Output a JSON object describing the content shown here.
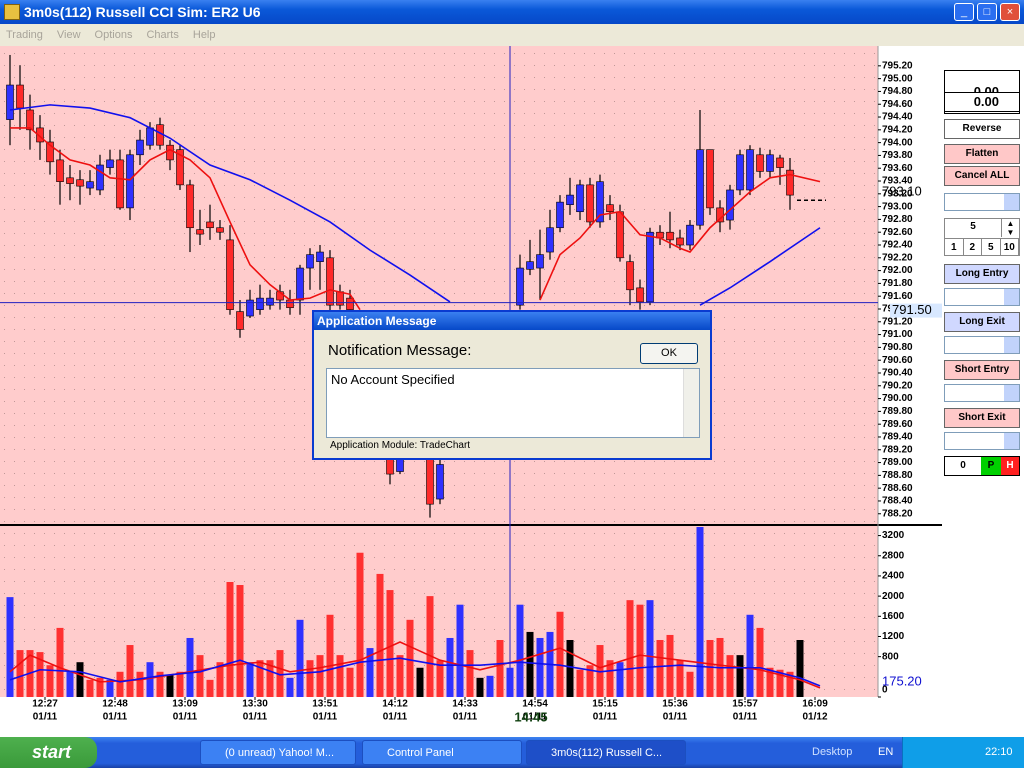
{
  "window": {
    "title": "3m0s(112) Russell CCI Sim: ER2 U6",
    "menu": [
      "Trading",
      "View",
      "Options",
      "Charts",
      "Help"
    ]
  },
  "chart_data": [
    {
      "type": "candlestick",
      "up_color": "#3030ff",
      "down_color": "#ff2a2a",
      "grid": true,
      "ylim": [
        788.04,
        795.51
      ],
      "yticks": [
        {
          "value": 795.2,
          "label": "795.20"
        },
        {
          "value": 795.0,
          "label": "795.00"
        },
        {
          "value": 794.8,
          "label": "794.80"
        },
        {
          "value": 794.6,
          "label": "794.60"
        },
        {
          "value": 794.4,
          "label": "794.40"
        },
        {
          "value": 794.2,
          "label": "794.20"
        },
        {
          "value": 794.0,
          "label": "794.00"
        },
        {
          "value": 793.8,
          "label": "793.80"
        },
        {
          "value": 793.6,
          "label": "793.60"
        },
        {
          "value": 793.4,
          "label": "793.40"
        },
        {
          "value": 793.2,
          "label": "793.20"
        },
        {
          "value": 793.0,
          "label": "793.00"
        },
        {
          "value": 792.8,
          "label": "792.80"
        },
        {
          "value": 792.6,
          "label": "792.60"
        },
        {
          "value": 792.4,
          "label": "792.40"
        },
        {
          "value": 792.2,
          "label": "792.20"
        },
        {
          "value": 792.0,
          "label": "792.00"
        },
        {
          "value": 791.8,
          "label": "791.80"
        },
        {
          "value": 791.6,
          "label": "791.60"
        },
        {
          "value": 791.4,
          "label": "791.40"
        },
        {
          "value": 791.2,
          "label": "791.20"
        },
        {
          "value": 791.0,
          "label": "791.00"
        },
        {
          "value": 790.8,
          "label": "790.80"
        },
        {
          "value": 790.6,
          "label": "790.60"
        },
        {
          "value": 790.4,
          "label": "790.40"
        },
        {
          "value": 790.2,
          "label": "790.20"
        },
        {
          "value": 790.0,
          "label": "790.00"
        },
        {
          "value": 789.8,
          "label": "789.80"
        },
        {
          "value": 789.6,
          "label": "789.60"
        },
        {
          "value": 789.4,
          "label": "789.40"
        },
        {
          "value": 789.2,
          "label": "789.20"
        },
        {
          "value": 789.0,
          "label": "789.00"
        },
        {
          "value": 788.8,
          "label": "788.80"
        },
        {
          "value": 788.6,
          "label": "788.60"
        },
        {
          "value": 788.4,
          "label": "788.40"
        },
        {
          "value": 788.2,
          "label": "788.20"
        }
      ],
      "open": [
        794.36,
        794.9,
        794.51,
        794.23,
        794.01,
        793.73,
        793.45,
        793.42,
        793.29,
        793.26,
        793.61,
        793.73,
        792.98,
        793.81,
        793.96,
        794.28,
        793.96,
        793.89,
        793.34,
        792.64,
        792.76,
        792.67,
        792.48,
        791.36,
        791.29,
        791.39,
        791.46,
        791.67,
        791.54,
        791.54,
        792.04,
        792.14,
        792.2,
        791.67,
        791.57,
        null,
        null,
        null,
        789.05,
        788.86,
        null,
        null,
        789.08,
        788.43,
        null,
        null,
        null,
        null,
        null,
        null,
        null,
        791.46,
        792.02,
        792.04,
        792.29,
        792.67,
        793.03,
        792.92,
        793.34,
        792.76,
        793.03,
        792.92,
        792.14,
        791.73,
        791.51,
        792.6,
        792.6,
        792.51,
        792.4,
        792.71,
        793.89,
        792.98,
        792.79,
        793.26,
        793.26,
        793.81,
        793.55,
        793.76,
        793.57,
        null
      ],
      "high": [
        795.37,
        795.21,
        794.75,
        794.43,
        794.2,
        793.89,
        793.65,
        793.57,
        793.57,
        793.81,
        793.89,
        793.89,
        793.89,
        794.2,
        794.32,
        794.39,
        794.04,
        793.96,
        793.42,
        792.95,
        793.03,
        792.79,
        792.71,
        791.54,
        791.7,
        791.78,
        791.7,
        791.78,
        791.7,
        792.09,
        792.35,
        792.4,
        792.32,
        791.78,
        791.7,
        null,
        null,
        null,
        789.13,
        789.13,
        null,
        null,
        789.13,
        789.05,
        null,
        null,
        null,
        null,
        null,
        null,
        null,
        792.25,
        792.48,
        792.64,
        792.95,
        793.18,
        793.45,
        793.42,
        793.45,
        793.5,
        793.18,
        793.03,
        792.25,
        791.86,
        792.67,
        792.71,
        792.92,
        792.64,
        792.79,
        794.51,
        793.89,
        793.1,
        793.34,
        793.89,
        793.96,
        793.92,
        793.89,
        793.81,
        793.76,
        null
      ],
      "low": [
        793.96,
        794.2,
        793.89,
        793.73,
        793.5,
        793.03,
        793.1,
        793.03,
        793.18,
        793.18,
        793.5,
        792.95,
        792.79,
        793.65,
        793.89,
        793.89,
        793.57,
        793.26,
        792.29,
        792.4,
        792.48,
        792.48,
        791.31,
        790.95,
        791.26,
        791.31,
        791.39,
        791.39,
        791.31,
        791.31,
        791.7,
        791.7,
        791.26,
        791.39,
        791.23,
        null,
        null,
        null,
        788.66,
        788.82,
        null,
        null,
        788.14,
        788.35,
        null,
        null,
        null,
        null,
        null,
        null,
        null,
        791.39,
        791.93,
        791.54,
        792.17,
        792.6,
        792.87,
        792.79,
        792.67,
        792.67,
        792.79,
        792.14,
        791.46,
        791.39,
        791.46,
        792.4,
        792.35,
        792.32,
        792.32,
        792.64,
        792.87,
        792.6,
        792.64,
        793.18,
        793.18,
        793.45,
        793.45,
        793.34,
        792.95,
        null
      ],
      "close": [
        794.9,
        794.54,
        794.2,
        794.01,
        793.7,
        793.39,
        793.36,
        793.32,
        793.39,
        793.65,
        793.73,
        792.98,
        793.81,
        794.04,
        794.23,
        793.96,
        793.73,
        793.34,
        792.67,
        792.57,
        792.67,
        792.6,
        791.39,
        791.08,
        791.54,
        791.57,
        791.57,
        791.54,
        791.42,
        792.04,
        792.25,
        792.29,
        791.46,
        791.46,
        791.39,
        null,
        null,
        null,
        788.82,
        789.08,
        null,
        null,
        788.35,
        788.97,
        null,
        null,
        null,
        null,
        null,
        null,
        null,
        792.04,
        792.14,
        792.25,
        792.67,
        793.07,
        793.18,
        793.34,
        792.76,
        793.39,
        792.92,
        792.2,
        791.7,
        791.51,
        792.6,
        792.51,
        792.48,
        792.4,
        792.71,
        793.89,
        792.98,
        792.76,
        793.26,
        793.81,
        793.89,
        793.55,
        793.81,
        793.61,
        793.18,
        null
      ],
      "lines": [
        {
          "color": "#1010ee",
          "x": [
            0,
            4,
            8,
            12,
            16,
            20,
            24,
            28,
            32,
            36,
            40,
            44,
            45,
            69,
            72,
            76,
            81
          ],
          "values": [
            794.51,
            794.59,
            794.54,
            794.39,
            794.07,
            793.65,
            793.42,
            793.1,
            792.76,
            792.32,
            791.93,
            791.51,
            null,
            791.46,
            791.73,
            792.14,
            792.67
          ]
        },
        {
          "color": "#ee1010",
          "x": [
            0,
            2,
            4,
            6,
            8,
            10,
            12,
            14,
            16,
            18,
            20,
            22,
            24,
            26,
            28,
            30,
            32,
            34,
            35,
            36,
            53,
            55,
            57,
            59,
            61,
            63,
            65,
            67,
            68,
            70,
            72,
            74,
            76,
            78,
            81
          ],
          "values": [
            794.23,
            794.23,
            793.96,
            793.73,
            793.65,
            793.45,
            793.42,
            793.73,
            793.89,
            793.73,
            793.45,
            792.76,
            792.09,
            791.78,
            791.54,
            791.57,
            791.7,
            791.63,
            791.39,
            null,
            791.54,
            792.25,
            792.51,
            792.87,
            792.92,
            792.56,
            792.51,
            792.35,
            792.29,
            792.67,
            792.95,
            793.23,
            793.45,
            793.5,
            793.39
          ]
        }
      ],
      "last_price": {
        "value": 793.1,
        "label": "793.10"
      },
      "crosshair_price": {
        "value": 791.5,
        "label": "791.50"
      },
      "crosshair_time": "14:45",
      "xtick_labels": [
        [
          "12:27",
          "01/11"
        ],
        [
          "12:48",
          "01/11"
        ],
        [
          "13:09",
          "01/11"
        ],
        [
          "13:30",
          "01/11"
        ],
        [
          "13:51",
          "01/11"
        ],
        [
          "14:12",
          "01/11"
        ],
        [
          "14:33",
          "01/11"
        ],
        [
          "14:54",
          "01/11"
        ],
        [
          "15:15",
          "01/11"
        ],
        [
          "15:36",
          "01/11"
        ],
        [
          "15:57",
          "01/11"
        ],
        [
          "16:09",
          "01/12"
        ]
      ]
    },
    {
      "type": "bar",
      "ylim": [
        0,
        3390
      ],
      "yticks": [
        3200,
        2800,
        2400,
        2000,
        1600,
        1200,
        800,
        0
      ],
      "reading": "175.20",
      "values": [
        1980,
        930,
        930,
        890,
        630,
        1370,
        500,
        690,
        340,
        380,
        340,
        500,
        1030,
        500,
        690,
        500,
        440,
        500,
        1170,
        830,
        340,
        690,
        2280,
        2220,
        690,
        730,
        730,
        930,
        380,
        1530,
        730,
        830,
        1630,
        830,
        580,
        2860,
        970,
        2440,
        2120,
        830,
        1530,
        580,
        2000,
        730,
        1170,
        1830,
        930,
        380,
        420,
        1130,
        580,
        1830,
        1290,
        1170,
        1290,
        1690,
        1130,
        540,
        630,
        1030,
        730,
        690,
        1920,
        1830,
        1920,
        1130,
        1230,
        730,
        500,
        3370,
        1130,
        1170,
        830,
        830,
        1630,
        1370,
        580,
        540,
        500,
        1130
      ],
      "colors": [
        "#3030ff",
        "#ff3030",
        "#ff3030",
        "#ff3030",
        "#ff3030",
        "#ff3030",
        "#3030ff",
        "#000000",
        "#ff3030",
        "#ff3030",
        "#3030ff",
        "#ff3030",
        "#ff3030",
        "#ff3030",
        "#3030ff",
        "#ff3030",
        "#000000",
        "#ff3030",
        "#3030ff",
        "#ff3030",
        "#ff3030",
        "#ff3030",
        "#ff3030",
        "#ff3030",
        "#3030ff",
        "#ff3030",
        "#ff3030",
        "#ff3030",
        "#3030ff",
        "#3030ff",
        "#ff3030",
        "#ff3030",
        "#ff3030",
        "#ff3030",
        "#ff3030",
        "#ff3030",
        "#3030ff",
        "#ff3030",
        "#ff3030",
        "#ff3030",
        "#ff3030",
        "#000000",
        "#ff3030",
        "#ff3030",
        "#3030ff",
        "#3030ff",
        "#ff3030",
        "#000000",
        "#3030ff",
        "#ff3030",
        "#3030ff",
        "#3030ff",
        "#000000",
        "#3030ff",
        "#3030ff",
        "#ff3030",
        "#000000",
        "#ff3030",
        "#ff3030",
        "#ff3030",
        "#ff3030",
        "#3030ff",
        "#ff3030",
        "#ff3030",
        "#3030ff",
        "#ff3030",
        "#ff3030",
        "#ff3030",
        "#ff3030",
        "#3030ff",
        "#ff3030",
        "#ff3030",
        "#ff3030",
        "#000000",
        "#3030ff",
        "#ff3030",
        "#ff3030",
        "#ff3030",
        "#ff3030",
        "#000000"
      ],
      "lines": [
        {
          "color": "#ee1010",
          "x": [
            0,
            2,
            5,
            9,
            13,
            18,
            22,
            25,
            28,
            31,
            35,
            39,
            43,
            47,
            51,
            55,
            59,
            63,
            67,
            71,
            75,
            79,
            81
          ],
          "values": [
            500,
            830,
            580,
            300,
            340,
            500,
            630,
            690,
            500,
            580,
            730,
            1090,
            730,
            540,
            730,
            970,
            580,
            830,
            730,
            630,
            540,
            340,
            180
          ]
        },
        {
          "color": "#1010ee",
          "x": [
            0,
            3,
            7,
            11,
            15,
            19,
            23,
            27,
            31,
            35,
            39,
            43,
            47,
            51,
            55,
            59,
            63,
            67,
            71,
            75,
            79,
            81
          ],
          "values": [
            340,
            540,
            500,
            300,
            420,
            500,
            730,
            440,
            500,
            690,
            770,
            630,
            630,
            690,
            630,
            500,
            580,
            630,
            580,
            580,
            380,
            220
          ]
        }
      ]
    }
  ],
  "panel": {
    "readouts": [
      "0.00",
      "0.00"
    ],
    "reverse": "Reverse",
    "flatten": "Flatten",
    "cancel_all": "Cancel ALL",
    "quantity": "5",
    "quick_sizes": [
      "1",
      "2",
      "5",
      "10"
    ],
    "orders": [
      "Long Entry",
      "Long Exit",
      "Short Entry",
      "Short Exit"
    ],
    "position": "0",
    "p": "P",
    "h": "H"
  },
  "dialog": {
    "title": "Application Message",
    "heading": "Notification Message:",
    "ok": "OK",
    "message": "No Account Specified",
    "module": "Application Module: TradeChart"
  },
  "taskbar": {
    "start": "start",
    "tasks": [
      "(0 unread) Yahoo! M...",
      "Control Panel",
      "3m0s(112) Russell C..."
    ],
    "desktop": "Desktop",
    "lang": "EN",
    "clock": "22:10"
  }
}
